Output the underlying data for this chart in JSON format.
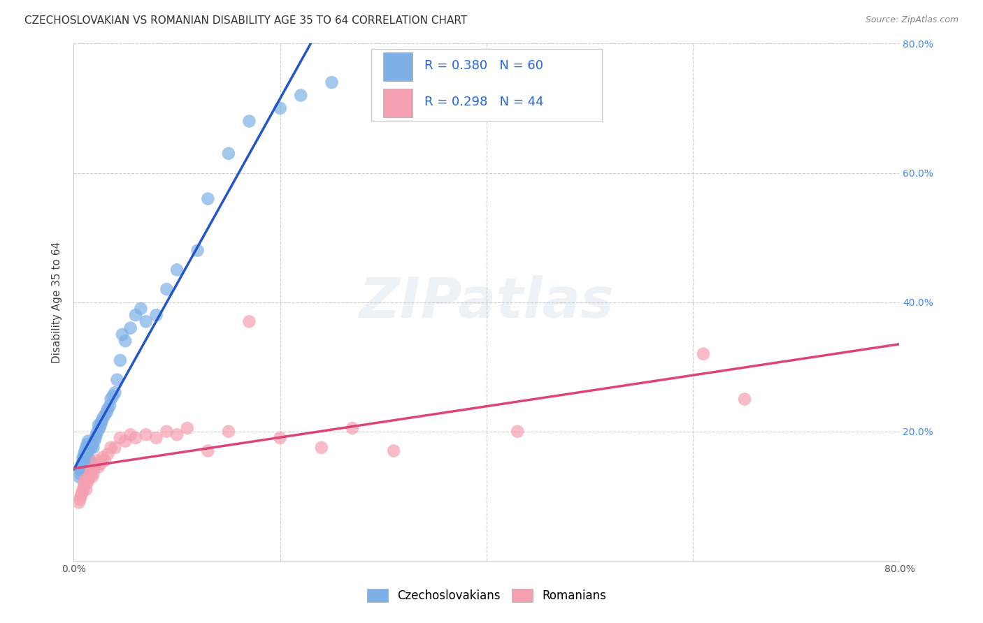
{
  "title": "CZECHOSLOVAKIAN VS ROMANIAN DISABILITY AGE 35 TO 64 CORRELATION CHART",
  "source": "Source: ZipAtlas.com",
  "ylabel": "Disability Age 35 to 64",
  "xlim": [
    0,
    0.8
  ],
  "ylim": [
    0,
    0.8
  ],
  "xticks": [
    0.0,
    0.2,
    0.4,
    0.6,
    0.8
  ],
  "yticks": [
    0.0,
    0.2,
    0.4,
    0.6,
    0.8
  ],
  "xticklabels": [
    "0.0%",
    "",
    "",
    "",
    "80.0%"
  ],
  "right_yticklabels": [
    "20.0%",
    "40.0%",
    "60.0%",
    "80.0%"
  ],
  "right_yticks": [
    0.2,
    0.4,
    0.6,
    0.8
  ],
  "czech_color": "#7EB0E8",
  "romanian_color": "#F4A0B0",
  "czech_line_color": "#2255CC",
  "romanian_line_color": "#DD4477",
  "watermark": "ZIPatlas",
  "czech_x": [
    0.005,
    0.006,
    0.007,
    0.007,
    0.008,
    0.008,
    0.009,
    0.009,
    0.01,
    0.01,
    0.01,
    0.011,
    0.011,
    0.012,
    0.012,
    0.013,
    0.013,
    0.014,
    0.014,
    0.015,
    0.015,
    0.016,
    0.016,
    0.017,
    0.018,
    0.019,
    0.02,
    0.021,
    0.022,
    0.023,
    0.024,
    0.025,
    0.026,
    0.027,
    0.028,
    0.03,
    0.032,
    0.033,
    0.035,
    0.036,
    0.038,
    0.04,
    0.042,
    0.045,
    0.047,
    0.05,
    0.055,
    0.06,
    0.065,
    0.07,
    0.08,
    0.09,
    0.1,
    0.12,
    0.13,
    0.15,
    0.17,
    0.2,
    0.22,
    0.25
  ],
  "czech_y": [
    0.13,
    0.135,
    0.14,
    0.145,
    0.14,
    0.15,
    0.155,
    0.16,
    0.15,
    0.16,
    0.165,
    0.155,
    0.17,
    0.16,
    0.175,
    0.165,
    0.18,
    0.17,
    0.185,
    0.155,
    0.175,
    0.155,
    0.175,
    0.175,
    0.18,
    0.175,
    0.185,
    0.19,
    0.195,
    0.2,
    0.21,
    0.205,
    0.21,
    0.215,
    0.22,
    0.225,
    0.23,
    0.235,
    0.24,
    0.25,
    0.255,
    0.26,
    0.28,
    0.31,
    0.35,
    0.34,
    0.36,
    0.38,
    0.39,
    0.37,
    0.38,
    0.42,
    0.45,
    0.48,
    0.56,
    0.63,
    0.68,
    0.7,
    0.72,
    0.74
  ],
  "romanian_x": [
    0.005,
    0.006,
    0.007,
    0.008,
    0.009,
    0.01,
    0.01,
    0.011,
    0.012,
    0.013,
    0.014,
    0.015,
    0.016,
    0.017,
    0.018,
    0.019,
    0.02,
    0.022,
    0.024,
    0.026,
    0.028,
    0.03,
    0.033,
    0.036,
    0.04,
    0.045,
    0.05,
    0.055,
    0.06,
    0.07,
    0.08,
    0.09,
    0.1,
    0.11,
    0.13,
    0.15,
    0.17,
    0.2,
    0.24,
    0.27,
    0.31,
    0.43,
    0.61,
    0.65
  ],
  "romanian_y": [
    0.09,
    0.095,
    0.1,
    0.105,
    0.11,
    0.115,
    0.12,
    0.125,
    0.11,
    0.12,
    0.125,
    0.13,
    0.135,
    0.14,
    0.13,
    0.135,
    0.145,
    0.155,
    0.145,
    0.15,
    0.16,
    0.155,
    0.165,
    0.175,
    0.175,
    0.19,
    0.185,
    0.195,
    0.19,
    0.195,
    0.19,
    0.2,
    0.195,
    0.205,
    0.17,
    0.2,
    0.37,
    0.19,
    0.175,
    0.205,
    0.17,
    0.2,
    0.32,
    0.25
  ],
  "background_color": "#ffffff",
  "grid_color": "#cccccc",
  "title_fontsize": 11,
  "axis_fontsize": 11,
  "tick_fontsize": 10,
  "legend_fontsize": 13
}
